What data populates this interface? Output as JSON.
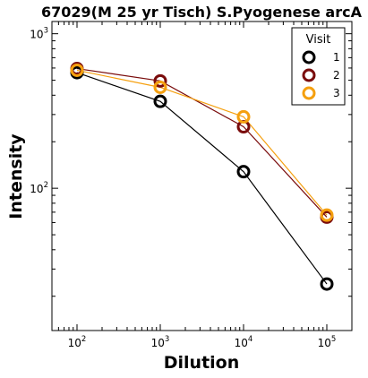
{
  "chart_data": {
    "type": "line",
    "title": "67029(M 25 yr Tisch) S.Pyogenese arcA",
    "xlabel": "Dilution",
    "ylabel": "Intensity",
    "x_scale": "log",
    "y_scale": "log",
    "xlim": [
      50,
      200000
    ],
    "ylim": [
      12,
      1200
    ],
    "x_ticks": [
      100,
      1000,
      10000,
      100000
    ],
    "x_tick_labels": [
      {
        "base": "10",
        "exp": "2"
      },
      {
        "base": "10",
        "exp": "3"
      },
      {
        "base": "10",
        "exp": "4"
      },
      {
        "base": "10",
        "exp": "5"
      }
    ],
    "y_ticks": [
      100,
      1000
    ],
    "y_tick_labels": [
      {
        "base": "10",
        "exp": "2"
      },
      {
        "base": "10",
        "exp": "3"
      }
    ],
    "x": [
      100,
      1000,
      10000,
      100000
    ],
    "series": [
      {
        "name": "1",
        "color": "#000000",
        "values": [
          560,
          365,
          128,
          24
        ]
      },
      {
        "name": "2",
        "color": "#7a0c0c",
        "values": [
          595,
          495,
          250,
          65
        ]
      },
      {
        "name": "3",
        "color": "#f5a00f",
        "values": [
          580,
          450,
          290,
          67
        ]
      }
    ],
    "legend": {
      "title": "Visit",
      "position": "top-right"
    },
    "grid": false
  }
}
